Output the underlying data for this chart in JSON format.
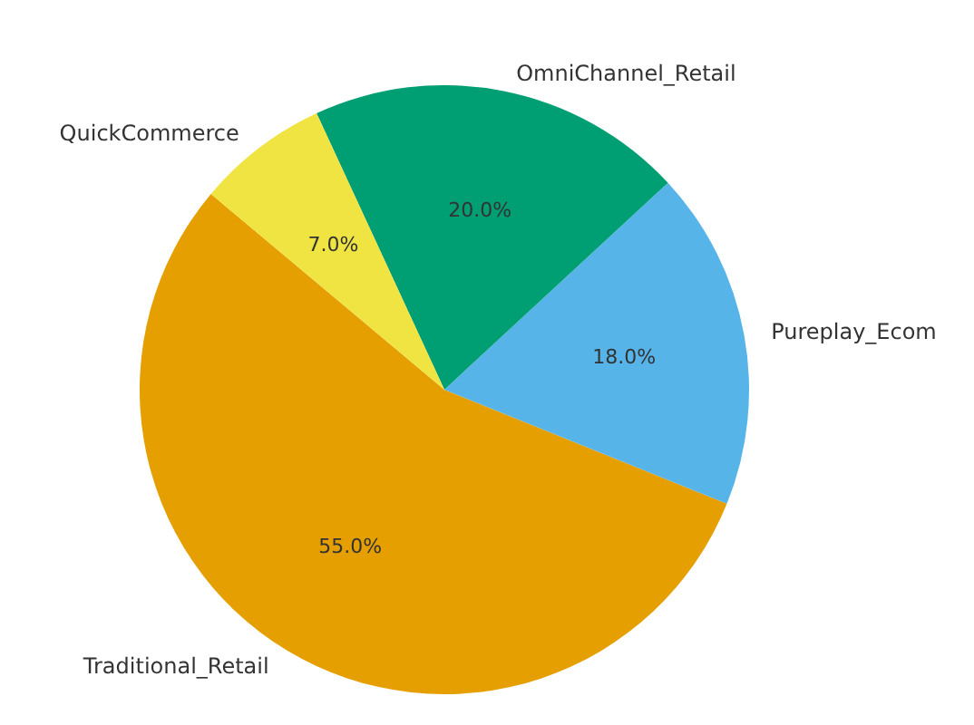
{
  "chart_data": {
    "type": "pie",
    "categories": [
      "Traditional_Retail",
      "Pureplay_Ecom",
      "OmniChannel_Retail",
      "QuickCommerce"
    ],
    "values": [
      55.0,
      18.0,
      20.0,
      7.0
    ],
    "colors": [
      "#e69f00",
      "#56b4e9",
      "#009e73",
      "#f0e442"
    ],
    "value_labels": [
      "55.0%",
      "18.0%",
      "20.0%",
      "7.0%"
    ]
  }
}
